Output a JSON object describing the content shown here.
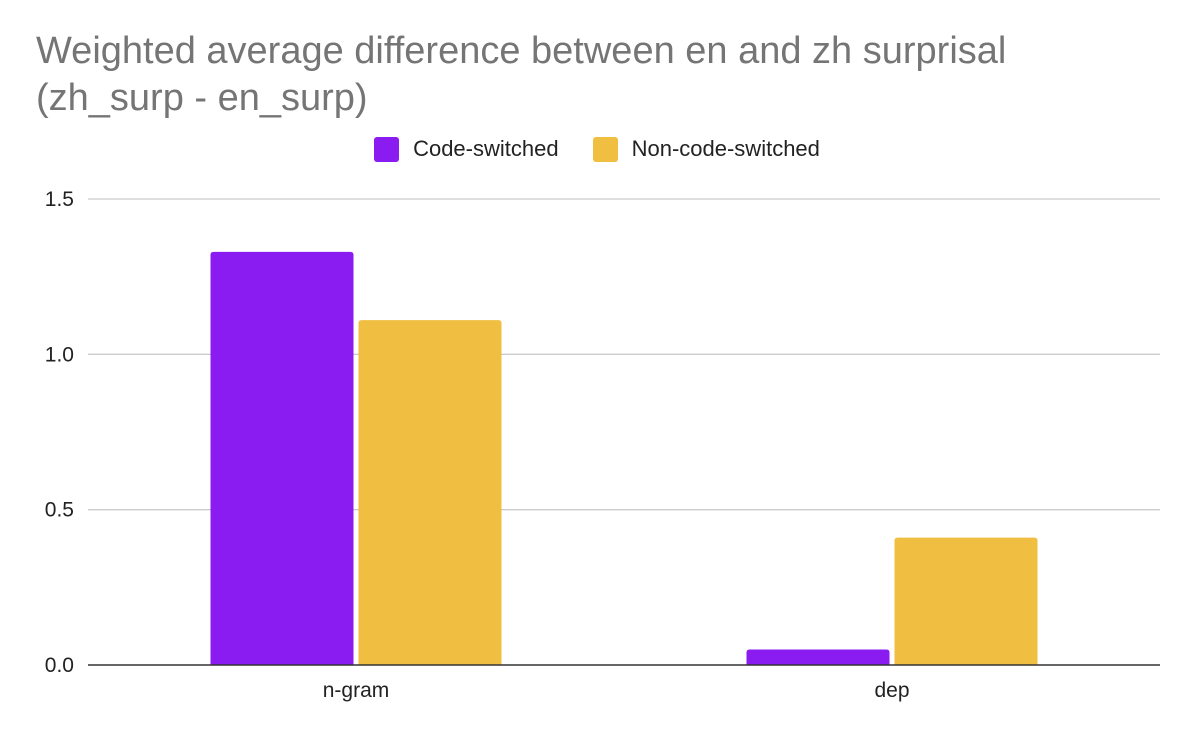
{
  "chart_data": {
    "type": "bar",
    "title": "Weighted average difference between en and zh surprisal (zh_surp - en_surp)",
    "title_lines": [
      "Weighted average difference between en and zh surprisal",
      "(zh_surp - en_surp)"
    ],
    "xlabel": "",
    "ylabel": "",
    "categories": [
      "n-gram",
      "dep"
    ],
    "series": [
      {
        "name": "Code-switched",
        "values": [
          1.33,
          0.05
        ],
        "color": "#8a1cf2"
      },
      {
        "name": "Non-code-switched",
        "values": [
          1.11,
          0.41
        ],
        "color": "#f0be41"
      }
    ],
    "ylim": [
      0,
      1.5
    ],
    "yticks": [
      "0.0",
      "0.5",
      "1.0",
      "1.5"
    ],
    "ytick_values": [
      0,
      0.5,
      1.0,
      1.5
    ],
    "grid": true,
    "legend_position": "top-center"
  },
  "colors": {
    "title": "#757575",
    "gridline": "#cccccc",
    "baseline": "#333333",
    "text": "#222222"
  }
}
